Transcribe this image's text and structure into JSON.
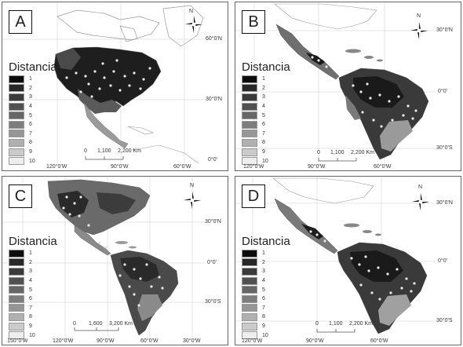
{
  "legend": {
    "title": "Distancia",
    "levels": [
      "1",
      "2",
      "3",
      "4",
      "5",
      "6",
      "7",
      "8",
      "9",
      "10"
    ],
    "colors": [
      "#0d0d0d",
      "#272727",
      "#3b3b3b",
      "#515151",
      "#666666",
      "#7d7d7d",
      "#969696",
      "#b0b0b0",
      "#cbcbcb",
      "#eeeeee"
    ]
  },
  "north_label": "N",
  "panels": [
    {
      "label": "A",
      "scale": {
        "zero": "0",
        "mid": "1,100",
        "end": "2,200 Km"
      },
      "lon_labels": [
        "120°0'W",
        "90°0'W",
        "60°0'W"
      ],
      "lat_labels": [
        "60°0'N",
        "30°0'N",
        "0°0'"
      ]
    },
    {
      "label": "B",
      "scale": {
        "zero": "0",
        "mid": "1,100",
        "end": "2,200 Km"
      },
      "lon_labels": [
        "120°0'W",
        "90°0'W",
        "60°0'W"
      ],
      "lat_labels": [
        "30°0'N",
        "0°0'",
        "30°0'S"
      ]
    },
    {
      "label": "C",
      "scale": {
        "zero": "0",
        "mid": "1,600",
        "end": "3,200 Km"
      },
      "lon_labels": [
        "150°0'W",
        "120°0'W",
        "90°0'W",
        "60°0'W",
        "30°0'W"
      ],
      "lat_labels": [
        "30°0'N",
        "0°0'",
        "30°0'S"
      ]
    },
    {
      "label": "D",
      "scale": {
        "zero": "0",
        "mid": "1,100",
        "end": "2,200 Km"
      },
      "lon_labels": [
        "120°0'W",
        "90°0'W",
        "60°0'W"
      ],
      "lat_labels": [
        "30°0'N",
        "0°0'",
        "30°0'S"
      ]
    }
  ]
}
